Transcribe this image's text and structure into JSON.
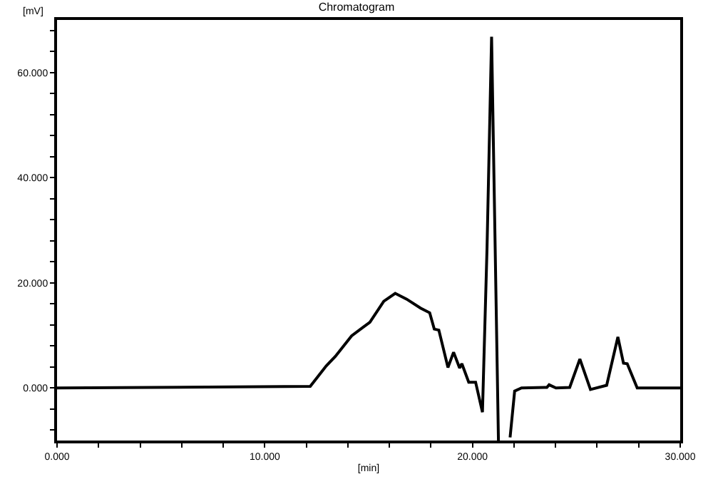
{
  "chart_data": {
    "type": "line",
    "title": "Chromatogram",
    "xlabel": "[min]",
    "ylabel": "[mV]",
    "x": [
      0,
      12.19,
      12.96,
      13.4,
      14.18,
      15.06,
      15.73,
      16.28,
      16.83,
      17.5,
      17.94,
      18.16,
      18.38,
      18.82,
      19.09,
      19.38,
      19.49,
      19.82,
      20.15,
      20.48,
      20.7,
      20.92,
      21.25,
      21.5,
      21.81,
      22.03,
      22.36,
      23.58,
      23.69,
      24.02,
      24.68,
      25.17,
      25.68,
      26.46,
      27.0,
      27.27,
      27.45,
      27.93,
      30
    ],
    "series": [
      {
        "color": "#000000",
        "values": [
          0,
          0.3,
          4.2,
          6.0,
          9.9,
          12.5,
          16.5,
          18.0,
          16.9,
          15.2,
          14.3,
          11.2,
          11.0,
          3.9,
          6.8,
          3.8,
          4.6,
          1.1,
          1.1,
          -4.6,
          26.6,
          66.8,
          -10,
          null,
          -9.4,
          -0.6,
          0,
          0.1,
          0.6,
          0,
          0.1,
          5.5,
          -0.3,
          0.5,
          9.7,
          4.7,
          4.6,
          0,
          0
        ]
      }
    ],
    "xlim": [
      0,
      30
    ],
    "ylim": [
      -10,
      70
    ],
    "xticks": [
      {
        "value": 0,
        "label": "0.000"
      },
      {
        "value": 2,
        "label": null
      },
      {
        "value": 4,
        "label": null
      },
      {
        "value": 6,
        "label": null
      },
      {
        "value": 8,
        "label": null
      },
      {
        "value": 10,
        "label": "10.000"
      },
      {
        "value": 12,
        "label": null
      },
      {
        "value": 14,
        "label": null
      },
      {
        "value": 16,
        "label": null
      },
      {
        "value": 18,
        "label": null
      },
      {
        "value": 20,
        "label": "20.000"
      },
      {
        "value": 22,
        "label": null
      },
      {
        "value": 24,
        "label": null
      },
      {
        "value": 26,
        "label": null
      },
      {
        "value": 28,
        "label": null
      },
      {
        "value": 30,
        "label": "30.000"
      }
    ],
    "yticks": [
      {
        "value": -8,
        "label": null
      },
      {
        "value": -4,
        "label": null
      },
      {
        "value": 0,
        "label": "0.000"
      },
      {
        "value": 4,
        "label": null
      },
      {
        "value": 8,
        "label": null
      },
      {
        "value": 12,
        "label": null
      },
      {
        "value": 16,
        "label": null
      },
      {
        "value": 20,
        "label": "20.000"
      },
      {
        "value": 24,
        "label": null
      },
      {
        "value": 28,
        "label": null
      },
      {
        "value": 32,
        "label": null
      },
      {
        "value": 36,
        "label": null
      },
      {
        "value": 40,
        "label": "40.000"
      },
      {
        "value": 44,
        "label": null
      },
      {
        "value": 48,
        "label": null
      },
      {
        "value": 52,
        "label": null
      },
      {
        "value": 56,
        "label": null
      },
      {
        "value": 60,
        "label": "60.000"
      },
      {
        "value": 64,
        "label": null
      },
      {
        "value": 68,
        "label": null
      }
    ],
    "legend": false,
    "marker": "none",
    "line_style": "solid"
  }
}
